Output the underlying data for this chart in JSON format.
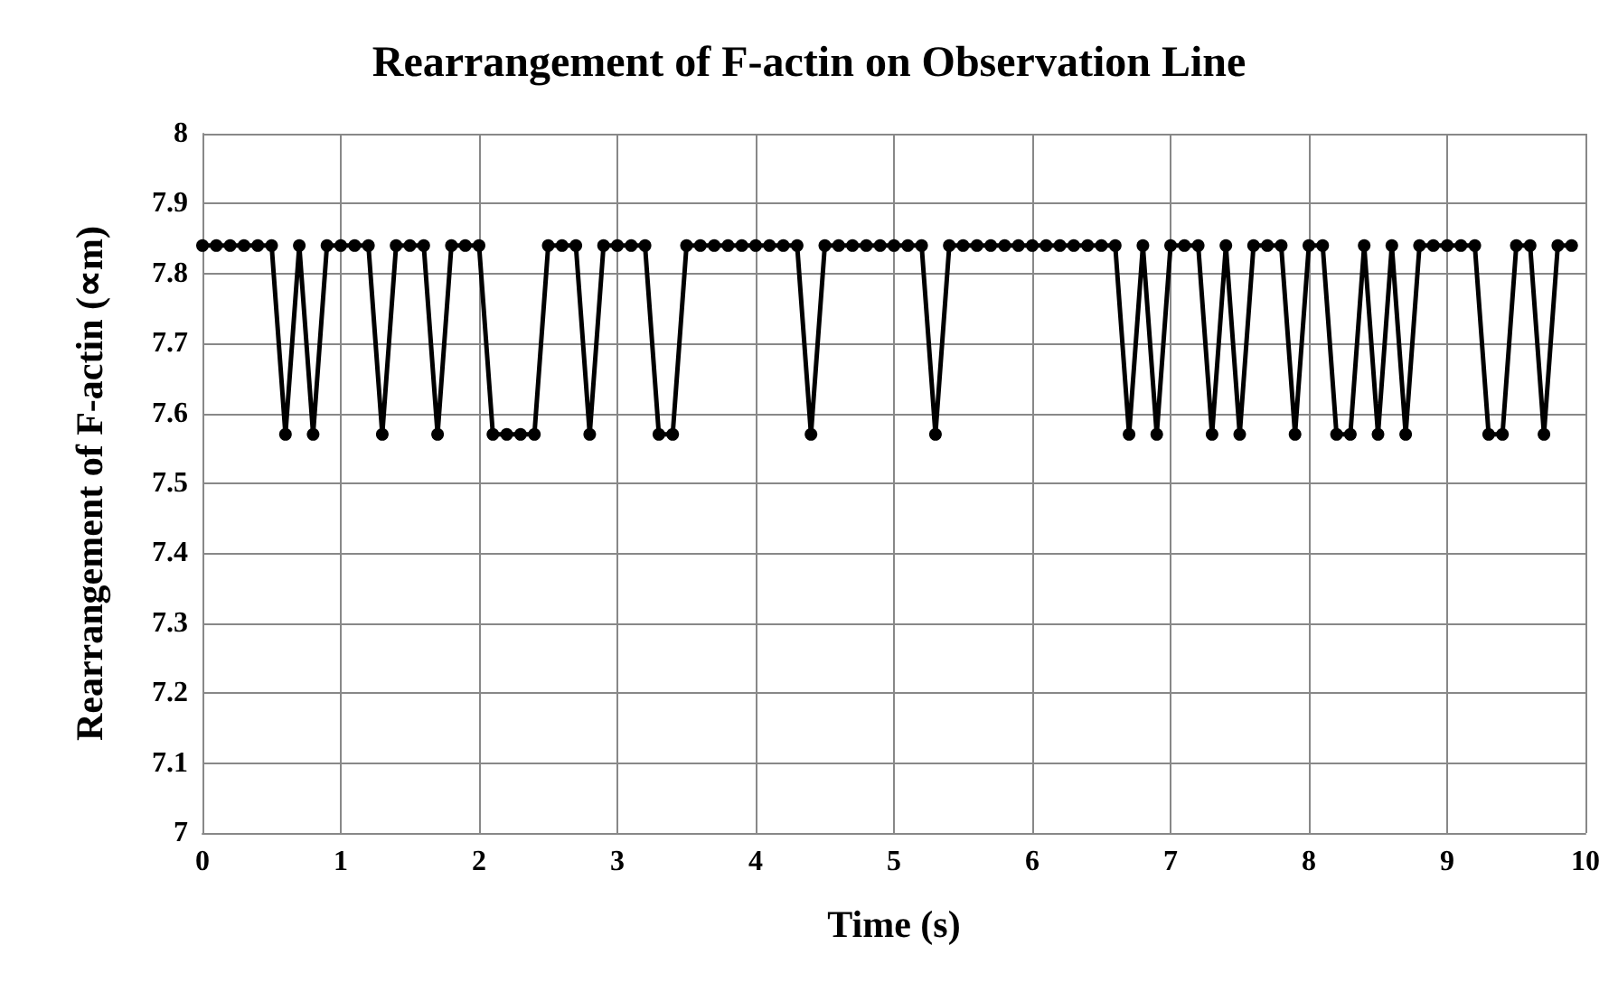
{
  "chart_data": {
    "type": "line",
    "title": "Rearrangement of F-actin on Observation Line",
    "xlabel": "Time (s)",
    "ylabel": "Rearrangement of F-actin (∝m)",
    "x": [
      0,
      0.1,
      0.2,
      0.3,
      0.4,
      0.5,
      0.6,
      0.7,
      0.8,
      0.9,
      1,
      1.1,
      1.2,
      1.3,
      1.4,
      1.5,
      1.6,
      1.7,
      1.8,
      1.9,
      2,
      2.1,
      2.2,
      2.3,
      2.4,
      2.5,
      2.6,
      2.7,
      2.8,
      2.9,
      3,
      3.1,
      3.2,
      3.3,
      3.4,
      3.5,
      3.6,
      3.7,
      3.8,
      3.9,
      4,
      4.1,
      4.2,
      4.3,
      4.4,
      4.5,
      4.6,
      4.7,
      4.8,
      4.9,
      5,
      5.1,
      5.2,
      5.3,
      5.4,
      5.5,
      5.6,
      5.7,
      5.8,
      5.9,
      6,
      6.1,
      6.2,
      6.3,
      6.4,
      6.5,
      6.6,
      6.7,
      6.8,
      6.9,
      7,
      7.1,
      7.2,
      7.3,
      7.4,
      7.5,
      7.6,
      7.7,
      7.8,
      7.9,
      8,
      8.1,
      8.2,
      8.3,
      8.4,
      8.5,
      8.6,
      8.7,
      8.8,
      8.9,
      9,
      9.1,
      9.2,
      9.3,
      9.4,
      9.5,
      9.6,
      9.7,
      9.8,
      9.9
    ],
    "series": [
      {
        "color": "#000000",
        "values": [
          7.84,
          7.84,
          7.84,
          7.84,
          7.84,
          7.84,
          7.57,
          7.84,
          7.57,
          7.84,
          7.84,
          7.84,
          7.84,
          7.57,
          7.84,
          7.84,
          7.84,
          7.57,
          7.84,
          7.84,
          7.84,
          7.57,
          7.57,
          7.57,
          7.57,
          7.84,
          7.84,
          7.84,
          7.57,
          7.84,
          7.84,
          7.84,
          7.84,
          7.57,
          7.57,
          7.84,
          7.84,
          7.84,
          7.84,
          7.84,
          7.84,
          7.84,
          7.84,
          7.84,
          7.57,
          7.84,
          7.84,
          7.84,
          7.84,
          7.84,
          7.84,
          7.84,
          7.84,
          7.57,
          7.84,
          7.84,
          7.84,
          7.84,
          7.84,
          7.84,
          7.84,
          7.84,
          7.84,
          7.84,
          7.84,
          7.84,
          7.84,
          7.57,
          7.84,
          7.57,
          7.84,
          7.84,
          7.84,
          7.57,
          7.84,
          7.57,
          7.84,
          7.84,
          7.84,
          7.57,
          7.84,
          7.84,
          7.57,
          7.57,
          7.84,
          7.57,
          7.84,
          7.57,
          7.84,
          7.84,
          7.84,
          7.84,
          7.84,
          7.57,
          7.57,
          7.84,
          7.84,
          7.57,
          7.84,
          7.84
        ]
      }
    ],
    "xlim": [
      0,
      10
    ],
    "xticks": [
      0,
      1,
      2,
      3,
      4,
      5,
      6,
      7,
      8,
      9,
      10
    ],
    "ylim": [
      7,
      8
    ],
    "yticks": [
      7,
      7.1,
      7.2,
      7.3,
      7.4,
      7.5,
      7.6,
      7.7,
      7.8,
      7.9,
      8
    ],
    "grid": true,
    "marker": "circle",
    "line_style": "solid"
  }
}
